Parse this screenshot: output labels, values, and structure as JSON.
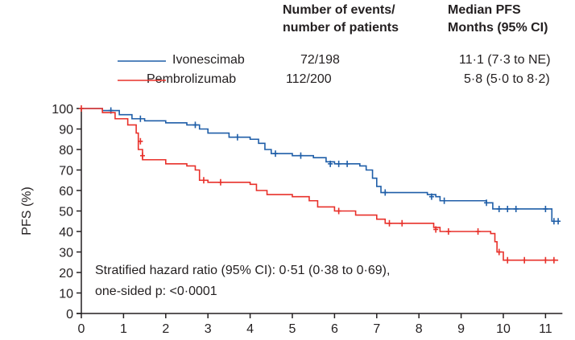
{
  "chart_data": {
    "type": "line",
    "subtype": "kaplan-meier",
    "xlabel": "",
    "ylabel": "PFS (%)",
    "xlim": [
      0,
      11.4
    ],
    "ylim": [
      0,
      100
    ],
    "xticks": [
      0,
      1,
      2,
      3,
      4,
      5,
      6,
      7,
      8,
      9,
      10,
      11
    ],
    "yticks": [
      0,
      10,
      20,
      30,
      40,
      50,
      60,
      70,
      80,
      90,
      100
    ],
    "grid": false,
    "table_headers": {
      "events": [
        "Number of events/",
        "number of patients"
      ],
      "median": [
        "Median PFS",
        "Months (95% CI)"
      ]
    },
    "series": [
      {
        "name": "Ivonescimab",
        "color": "#1f5ea8",
        "events": "72/198",
        "median": "11·1 (7·3 to NE)",
        "steps": [
          [
            0,
            100
          ],
          [
            0.5,
            99
          ],
          [
            0.9,
            97
          ],
          [
            1.2,
            95
          ],
          [
            1.5,
            94
          ],
          [
            2,
            93
          ],
          [
            2.5,
            92
          ],
          [
            2.8,
            90
          ],
          [
            3,
            88
          ],
          [
            3.5,
            86
          ],
          [
            4,
            85
          ],
          [
            4.2,
            83
          ],
          [
            4.35,
            80
          ],
          [
            4.5,
            78
          ],
          [
            5,
            77
          ],
          [
            5.5,
            76
          ],
          [
            5.8,
            74
          ],
          [
            6,
            73
          ],
          [
            6.6,
            72
          ],
          [
            6.75,
            70
          ],
          [
            6.9,
            66
          ],
          [
            7,
            62
          ],
          [
            7.1,
            59
          ],
          [
            7.6,
            59
          ],
          [
            8.2,
            58
          ],
          [
            8.4,
            57
          ],
          [
            8.5,
            55
          ],
          [
            9.6,
            54
          ],
          [
            9.75,
            51
          ],
          [
            11.1,
            51
          ],
          [
            11.15,
            45
          ],
          [
            11.3,
            45
          ]
        ],
        "censored": [
          [
            0.7,
            99
          ],
          [
            1.4,
            95
          ],
          [
            2.7,
            92
          ],
          [
            3.7,
            86
          ],
          [
            4.6,
            78
          ],
          [
            5.2,
            77
          ],
          [
            5.9,
            73
          ],
          [
            6.1,
            73
          ],
          [
            6.3,
            73
          ],
          [
            7.2,
            59
          ],
          [
            8.3,
            57
          ],
          [
            8.6,
            55
          ],
          [
            9.6,
            54
          ],
          [
            9.9,
            51
          ],
          [
            10.1,
            51
          ],
          [
            10.3,
            51
          ],
          [
            11,
            51
          ],
          [
            11.2,
            45
          ],
          [
            11.3,
            45
          ]
        ]
      },
      {
        "name": "Pembrolizumab",
        "color": "#e8302a",
        "events": "112/200",
        "median": "5·8 (5·0 to 8·2)",
        "steps": [
          [
            0,
            100
          ],
          [
            0.5,
            98
          ],
          [
            0.8,
            95
          ],
          [
            1.1,
            92
          ],
          [
            1.3,
            88
          ],
          [
            1.35,
            80
          ],
          [
            1.45,
            75
          ],
          [
            2,
            73
          ],
          [
            2.5,
            72
          ],
          [
            2.7,
            70
          ],
          [
            2.8,
            65
          ],
          [
            3,
            64
          ],
          [
            4,
            63
          ],
          [
            4.15,
            60
          ],
          [
            4.4,
            58
          ],
          [
            5,
            57
          ],
          [
            5.4,
            55
          ],
          [
            5.6,
            52
          ],
          [
            6,
            50
          ],
          [
            6.5,
            48
          ],
          [
            7,
            46
          ],
          [
            7.2,
            44
          ],
          [
            8.2,
            44
          ],
          [
            8.35,
            42
          ],
          [
            8.5,
            40
          ],
          [
            9.5,
            40
          ],
          [
            9.7,
            39
          ],
          [
            9.8,
            35
          ],
          [
            9.85,
            30
          ],
          [
            10,
            26
          ],
          [
            11.3,
            26
          ]
        ],
        "censored": [
          [
            0,
            100
          ],
          [
            1.4,
            84
          ],
          [
            1.45,
            77
          ],
          [
            2.9,
            65
          ],
          [
            3.3,
            64
          ],
          [
            6.1,
            50
          ],
          [
            7.3,
            44
          ],
          [
            7.6,
            44
          ],
          [
            8.4,
            41
          ],
          [
            8.7,
            40
          ],
          [
            9.4,
            40
          ],
          [
            9.9,
            30
          ],
          [
            10.1,
            26
          ],
          [
            10.5,
            26
          ],
          [
            11,
            26
          ],
          [
            11.2,
            26
          ]
        ]
      }
    ],
    "annotations": [
      "Stratified hazard ratio (95% CI): 0·51 (0·38 to 0·69),",
      "one-sided p: <0·0001"
    ]
  }
}
